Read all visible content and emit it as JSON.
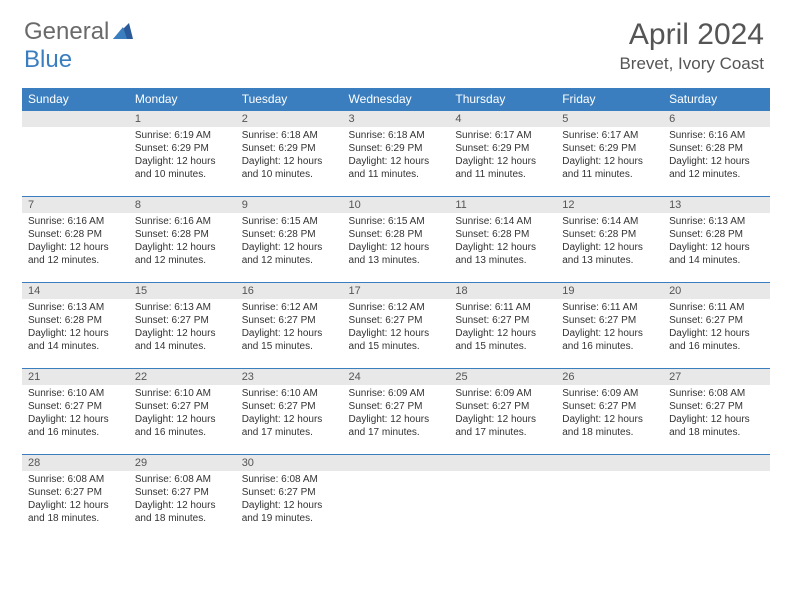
{
  "logo": {
    "part1": "General",
    "part2": "Blue"
  },
  "title": "April 2024",
  "location": "Brevet, Ivory Coast",
  "weekdays": [
    "Sunday",
    "Monday",
    "Tuesday",
    "Wednesday",
    "Thursday",
    "Friday",
    "Saturday"
  ],
  "colors": {
    "header_bg": "#3a7ebf",
    "header_text": "#ffffff",
    "daynum_bg": "#e8e8e8",
    "border": "#3a7ebf",
    "text": "#333333",
    "title_text": "#555555"
  },
  "weeks": [
    [
      {
        "n": "",
        "sunrise": "",
        "sunset": "",
        "daylight": ""
      },
      {
        "n": "1",
        "sunrise": "Sunrise: 6:19 AM",
        "sunset": "Sunset: 6:29 PM",
        "daylight": "Daylight: 12 hours and 10 minutes."
      },
      {
        "n": "2",
        "sunrise": "Sunrise: 6:18 AM",
        "sunset": "Sunset: 6:29 PM",
        "daylight": "Daylight: 12 hours and 10 minutes."
      },
      {
        "n": "3",
        "sunrise": "Sunrise: 6:18 AM",
        "sunset": "Sunset: 6:29 PM",
        "daylight": "Daylight: 12 hours and 11 minutes."
      },
      {
        "n": "4",
        "sunrise": "Sunrise: 6:17 AM",
        "sunset": "Sunset: 6:29 PM",
        "daylight": "Daylight: 12 hours and 11 minutes."
      },
      {
        "n": "5",
        "sunrise": "Sunrise: 6:17 AM",
        "sunset": "Sunset: 6:29 PM",
        "daylight": "Daylight: 12 hours and 11 minutes."
      },
      {
        "n": "6",
        "sunrise": "Sunrise: 6:16 AM",
        "sunset": "Sunset: 6:28 PM",
        "daylight": "Daylight: 12 hours and 12 minutes."
      }
    ],
    [
      {
        "n": "7",
        "sunrise": "Sunrise: 6:16 AM",
        "sunset": "Sunset: 6:28 PM",
        "daylight": "Daylight: 12 hours and 12 minutes."
      },
      {
        "n": "8",
        "sunrise": "Sunrise: 6:16 AM",
        "sunset": "Sunset: 6:28 PM",
        "daylight": "Daylight: 12 hours and 12 minutes."
      },
      {
        "n": "9",
        "sunrise": "Sunrise: 6:15 AM",
        "sunset": "Sunset: 6:28 PM",
        "daylight": "Daylight: 12 hours and 12 minutes."
      },
      {
        "n": "10",
        "sunrise": "Sunrise: 6:15 AM",
        "sunset": "Sunset: 6:28 PM",
        "daylight": "Daylight: 12 hours and 13 minutes."
      },
      {
        "n": "11",
        "sunrise": "Sunrise: 6:14 AM",
        "sunset": "Sunset: 6:28 PM",
        "daylight": "Daylight: 12 hours and 13 minutes."
      },
      {
        "n": "12",
        "sunrise": "Sunrise: 6:14 AM",
        "sunset": "Sunset: 6:28 PM",
        "daylight": "Daylight: 12 hours and 13 minutes."
      },
      {
        "n": "13",
        "sunrise": "Sunrise: 6:13 AM",
        "sunset": "Sunset: 6:28 PM",
        "daylight": "Daylight: 12 hours and 14 minutes."
      }
    ],
    [
      {
        "n": "14",
        "sunrise": "Sunrise: 6:13 AM",
        "sunset": "Sunset: 6:28 PM",
        "daylight": "Daylight: 12 hours and 14 minutes."
      },
      {
        "n": "15",
        "sunrise": "Sunrise: 6:13 AM",
        "sunset": "Sunset: 6:27 PM",
        "daylight": "Daylight: 12 hours and 14 minutes."
      },
      {
        "n": "16",
        "sunrise": "Sunrise: 6:12 AM",
        "sunset": "Sunset: 6:27 PM",
        "daylight": "Daylight: 12 hours and 15 minutes."
      },
      {
        "n": "17",
        "sunrise": "Sunrise: 6:12 AM",
        "sunset": "Sunset: 6:27 PM",
        "daylight": "Daylight: 12 hours and 15 minutes."
      },
      {
        "n": "18",
        "sunrise": "Sunrise: 6:11 AM",
        "sunset": "Sunset: 6:27 PM",
        "daylight": "Daylight: 12 hours and 15 minutes."
      },
      {
        "n": "19",
        "sunrise": "Sunrise: 6:11 AM",
        "sunset": "Sunset: 6:27 PM",
        "daylight": "Daylight: 12 hours and 16 minutes."
      },
      {
        "n": "20",
        "sunrise": "Sunrise: 6:11 AM",
        "sunset": "Sunset: 6:27 PM",
        "daylight": "Daylight: 12 hours and 16 minutes."
      }
    ],
    [
      {
        "n": "21",
        "sunrise": "Sunrise: 6:10 AM",
        "sunset": "Sunset: 6:27 PM",
        "daylight": "Daylight: 12 hours and 16 minutes."
      },
      {
        "n": "22",
        "sunrise": "Sunrise: 6:10 AM",
        "sunset": "Sunset: 6:27 PM",
        "daylight": "Daylight: 12 hours and 16 minutes."
      },
      {
        "n": "23",
        "sunrise": "Sunrise: 6:10 AM",
        "sunset": "Sunset: 6:27 PM",
        "daylight": "Daylight: 12 hours and 17 minutes."
      },
      {
        "n": "24",
        "sunrise": "Sunrise: 6:09 AM",
        "sunset": "Sunset: 6:27 PM",
        "daylight": "Daylight: 12 hours and 17 minutes."
      },
      {
        "n": "25",
        "sunrise": "Sunrise: 6:09 AM",
        "sunset": "Sunset: 6:27 PM",
        "daylight": "Daylight: 12 hours and 17 minutes."
      },
      {
        "n": "26",
        "sunrise": "Sunrise: 6:09 AM",
        "sunset": "Sunset: 6:27 PM",
        "daylight": "Daylight: 12 hours and 18 minutes."
      },
      {
        "n": "27",
        "sunrise": "Sunrise: 6:08 AM",
        "sunset": "Sunset: 6:27 PM",
        "daylight": "Daylight: 12 hours and 18 minutes."
      }
    ],
    [
      {
        "n": "28",
        "sunrise": "Sunrise: 6:08 AM",
        "sunset": "Sunset: 6:27 PM",
        "daylight": "Daylight: 12 hours and 18 minutes."
      },
      {
        "n": "29",
        "sunrise": "Sunrise: 6:08 AM",
        "sunset": "Sunset: 6:27 PM",
        "daylight": "Daylight: 12 hours and 18 minutes."
      },
      {
        "n": "30",
        "sunrise": "Sunrise: 6:08 AM",
        "sunset": "Sunset: 6:27 PM",
        "daylight": "Daylight: 12 hours and 19 minutes."
      },
      {
        "n": "",
        "sunrise": "",
        "sunset": "",
        "daylight": ""
      },
      {
        "n": "",
        "sunrise": "",
        "sunset": "",
        "daylight": ""
      },
      {
        "n": "",
        "sunrise": "",
        "sunset": "",
        "daylight": ""
      },
      {
        "n": "",
        "sunrise": "",
        "sunset": "",
        "daylight": ""
      }
    ]
  ]
}
